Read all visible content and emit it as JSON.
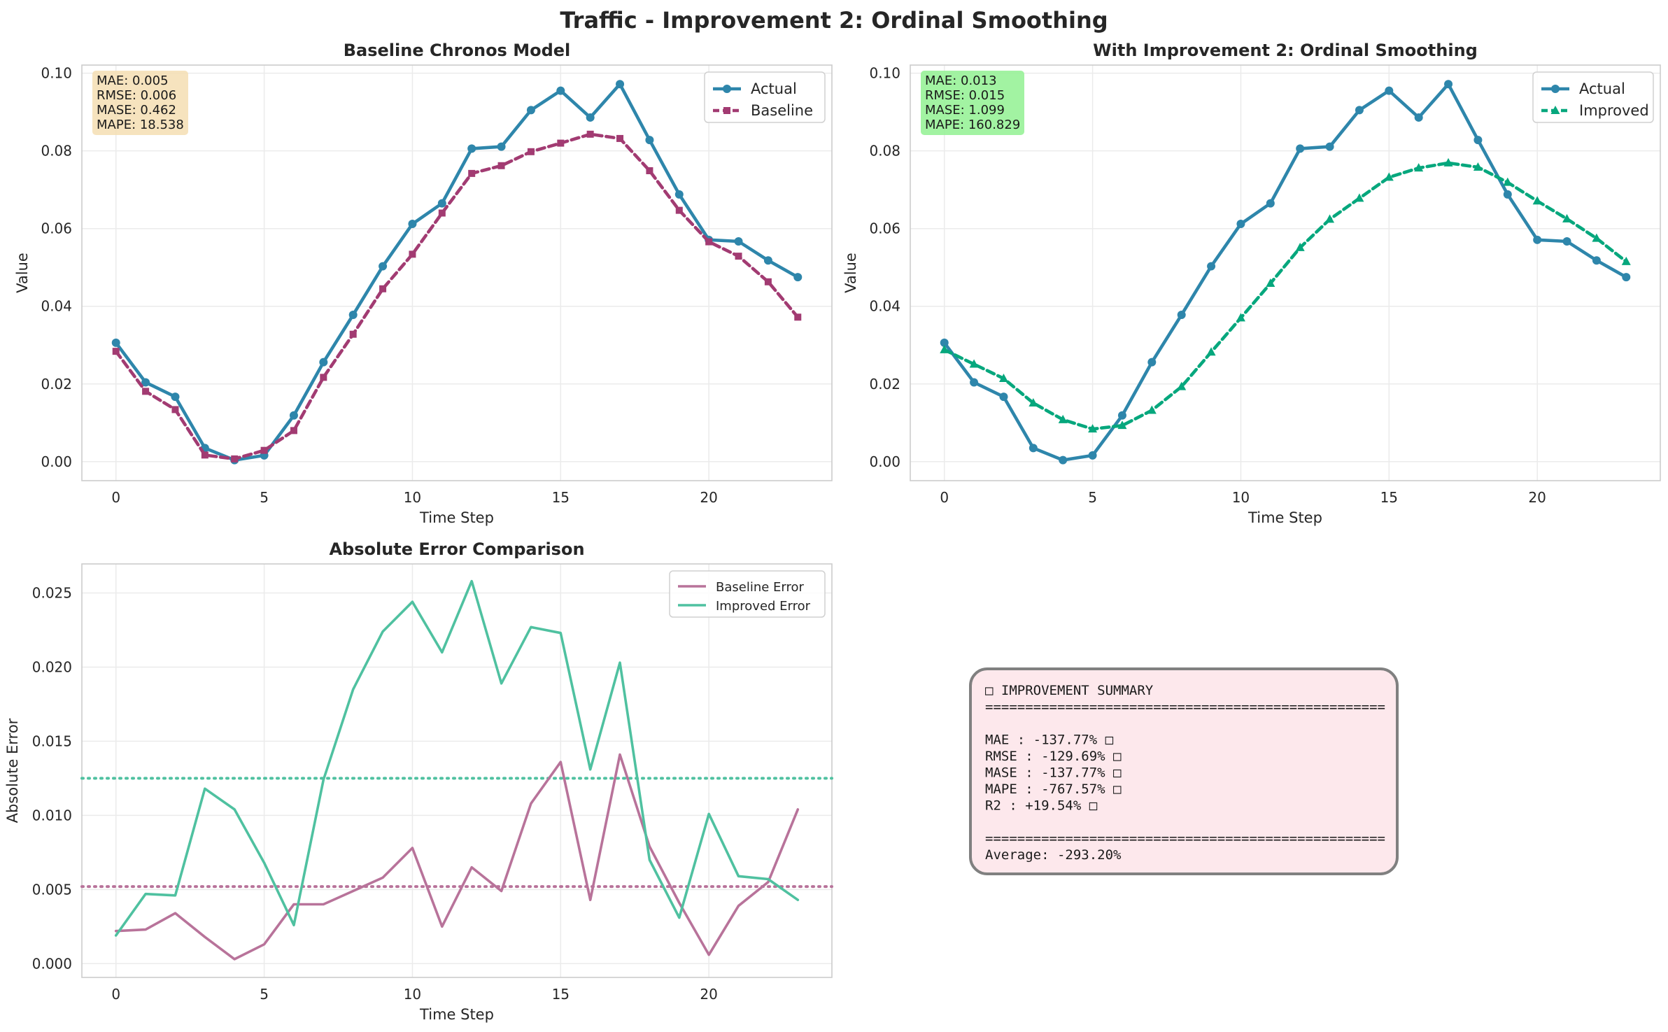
{
  "figure": {
    "title": "Traffic - Improvement 2: Ordinal Smoothing"
  },
  "colors": {
    "actual": "#2e86ab",
    "baseline": "#a23b72",
    "improved": "#06a77d",
    "baseline_error": "#b8739a",
    "improved_error": "#4fc1a0",
    "baseline_box": "#f5deb3",
    "improved_box": "#98f298",
    "summary_box": "#fde8ec",
    "summary_border": "#808080"
  },
  "chart_data": [
    {
      "type": "line",
      "title": "Baseline Chronos Model",
      "xlabel": "Time Step",
      "ylabel": "Value",
      "xlim": [
        -1.15,
        24.15
      ],
      "ylim": [
        -0.0049,
        0.1021
      ],
      "xticks": [
        0,
        5,
        10,
        15,
        20
      ],
      "yticks": [
        0.0,
        0.02,
        0.04,
        0.06,
        0.08,
        0.1
      ],
      "ytick_labels": [
        "0.00",
        "0.02",
        "0.04",
        "0.06",
        "0.08",
        "0.10"
      ],
      "grid": true,
      "legend": "top-right",
      "x": [
        0,
        1,
        2,
        3,
        4,
        5,
        6,
        7,
        8,
        9,
        10,
        11,
        12,
        13,
        14,
        15,
        16,
        17,
        18,
        19,
        20,
        21,
        22,
        23
      ],
      "series": [
        {
          "name": "Actual",
          "color": "#2e86ab",
          "marker": "circle",
          "dash": "solid",
          "values": [
            0.0306,
            0.0204,
            0.0167,
            0.0035,
            0.0004,
            0.0016,
            0.0119,
            0.0256,
            0.0378,
            0.0503,
            0.0612,
            0.0665,
            0.0806,
            0.0811,
            0.0905,
            0.0955,
            0.0886,
            0.0972,
            0.0828,
            0.0688,
            0.0571,
            0.0567,
            0.0518,
            0.0475
          ]
        },
        {
          "name": "Baseline",
          "color": "#a23b72",
          "marker": "square",
          "dash": "dashed",
          "values": [
            0.0284,
            0.0181,
            0.0134,
            0.0017,
            0.0007,
            0.0029,
            0.008,
            0.0217,
            0.0328,
            0.0445,
            0.0534,
            0.064,
            0.0742,
            0.0762,
            0.0798,
            0.082,
            0.0843,
            0.0832,
            0.0749,
            0.0647,
            0.0566,
            0.0529,
            0.0463,
            0.0372
          ]
        }
      ],
      "metrics_box": [
        "MAE: 0.005",
        "RMSE: 0.006",
        "MASE: 0.462",
        "MAPE: 18.538"
      ]
    },
    {
      "type": "line",
      "title": "With Improvement 2: Ordinal Smoothing",
      "xlabel": "Time Step",
      "ylabel": "Value",
      "xlim": [
        -1.15,
        24.15
      ],
      "ylim": [
        -0.0049,
        0.1021
      ],
      "xticks": [
        0,
        5,
        10,
        15,
        20
      ],
      "yticks": [
        0.0,
        0.02,
        0.04,
        0.06,
        0.08,
        0.1
      ],
      "ytick_labels": [
        "0.00",
        "0.02",
        "0.04",
        "0.06",
        "0.08",
        "0.10"
      ],
      "grid": true,
      "legend": "top-right",
      "x": [
        0,
        1,
        2,
        3,
        4,
        5,
        6,
        7,
        8,
        9,
        10,
        11,
        12,
        13,
        14,
        15,
        16,
        17,
        18,
        19,
        20,
        21,
        22,
        23
      ],
      "series": [
        {
          "name": "Actual",
          "color": "#2e86ab",
          "marker": "circle",
          "dash": "solid",
          "values": [
            0.0306,
            0.0204,
            0.0167,
            0.0035,
            0.0004,
            0.0016,
            0.0119,
            0.0256,
            0.0378,
            0.0503,
            0.0612,
            0.0665,
            0.0806,
            0.0811,
            0.0905,
            0.0955,
            0.0886,
            0.0972,
            0.0828,
            0.0688,
            0.0571,
            0.0567,
            0.0518,
            0.0475
          ]
        },
        {
          "name": "Improved",
          "color": "#06a77d",
          "marker": "triangle",
          "dash": "dashed",
          "values": [
            0.0288,
            0.0251,
            0.0214,
            0.0151,
            0.0108,
            0.0084,
            0.0093,
            0.0132,
            0.0193,
            0.0282,
            0.037,
            0.0459,
            0.0551,
            0.0624,
            0.0678,
            0.0732,
            0.0756,
            0.0769,
            0.0758,
            0.0719,
            0.0671,
            0.0625,
            0.0575,
            0.0515
          ]
        }
      ],
      "metrics_box": [
        "MAE: 0.013",
        "RMSE: 0.015",
        "MASE: 1.099",
        "MAPE: 160.829"
      ]
    },
    {
      "type": "line",
      "title": "Absolute Error Comparison",
      "xlabel": "Time Step",
      "ylabel": "Absolute Error",
      "xlim": [
        -1.15,
        24.15
      ],
      "ylim": [
        -0.00093,
        0.02696
      ],
      "xticks": [
        0,
        5,
        10,
        15,
        20
      ],
      "yticks": [
        0.0,
        0.005,
        0.01,
        0.015,
        0.02,
        0.025
      ],
      "ytick_labels": [
        "0.000",
        "0.005",
        "0.010",
        "0.015",
        "0.020",
        "0.025"
      ],
      "grid": true,
      "legend": "top-right",
      "x": [
        0,
        1,
        2,
        3,
        4,
        5,
        6,
        7,
        8,
        9,
        10,
        11,
        12,
        13,
        14,
        15,
        16,
        17,
        18,
        19,
        20,
        21,
        22,
        23
      ],
      "series": [
        {
          "name": "Baseline Error",
          "color": "#b8739a",
          "dash": "solid",
          "values": [
            0.0022,
            0.0023,
            0.0034,
            0.0018,
            0.0003,
            0.0013,
            0.004,
            0.004,
            0.0049,
            0.0058,
            0.0078,
            0.0025,
            0.0065,
            0.0049,
            0.0108,
            0.0136,
            0.0043,
            0.0141,
            0.0079,
            0.0041,
            0.0006,
            0.0039,
            0.0055,
            0.0104
          ]
        },
        {
          "name": "Improved Error",
          "color": "#4fc1a0",
          "dash": "solid",
          "values": [
            0.0019,
            0.0047,
            0.0046,
            0.0118,
            0.0104,
            0.0068,
            0.0026,
            0.0124,
            0.0185,
            0.0224,
            0.0244,
            0.021,
            0.0258,
            0.0189,
            0.0227,
            0.0223,
            0.0131,
            0.0203,
            0.007,
            0.0031,
            0.0101,
            0.0059,
            0.0057,
            0.0043
          ]
        }
      ],
      "hlines": [
        {
          "value": 0.0052,
          "color": "#b8739a",
          "dash": "dotted"
        },
        {
          "value": 0.0125,
          "color": "#4fc1a0",
          "dash": "dotted"
        }
      ]
    }
  ],
  "summary": {
    "lines": [
      "□ IMPROVEMENT SUMMARY",
      "==================================================",
      "",
      "MAE            : -137.77% □",
      "RMSE           : -129.69% □",
      "MASE           : -137.77% □",
      "MAPE           : -767.57% □",
      "R2             :  +19.54% □",
      "",
      "==================================================",
      "Average: -293.20%"
    ]
  }
}
